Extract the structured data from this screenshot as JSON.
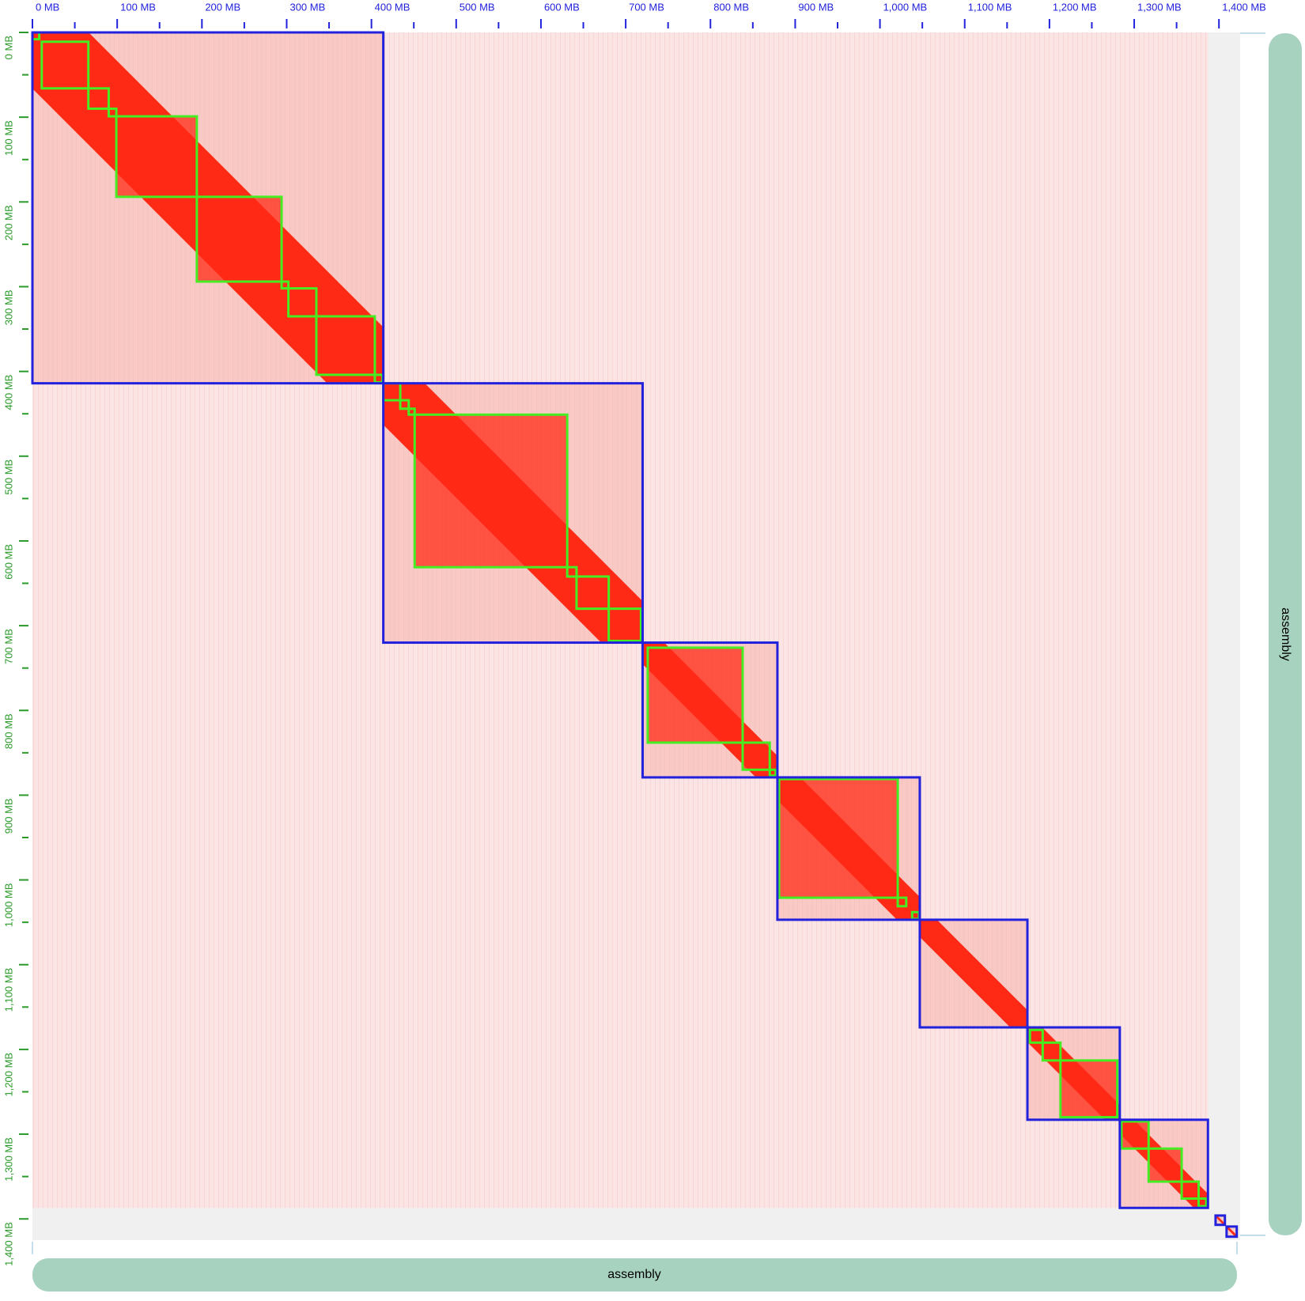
{
  "chart_data": {
    "type": "contact-map",
    "x_label": "assembly",
    "y_label": "assembly",
    "xlim": [
      0,
      1425
    ],
    "ylim": [
      0,
      1425
    ],
    "xticks": [
      {
        "value": 0,
        "label": "0 MB"
      },
      {
        "value": 100,
        "label": "100 MB"
      },
      {
        "value": 200,
        "label": "200 MB"
      },
      {
        "value": 300,
        "label": "300 MB"
      },
      {
        "value": 400,
        "label": "400 MB"
      },
      {
        "value": 500,
        "label": "500 MB"
      },
      {
        "value": 600,
        "label": "600 MB"
      },
      {
        "value": 700,
        "label": "700 MB"
      },
      {
        "value": 800,
        "label": "800 MB"
      },
      {
        "value": 900,
        "label": "900 MB"
      },
      {
        "value": 1000,
        "label": "1,000 MB"
      },
      {
        "value": 1100,
        "label": "1,100 MB"
      },
      {
        "value": 1200,
        "label": "1,200 MB"
      },
      {
        "value": 1300,
        "label": "1,300 MB"
      },
      {
        "value": 1400,
        "label": "1,400 MB"
      }
    ],
    "yticks": [
      {
        "value": 0,
        "label": "0 MB"
      },
      {
        "value": 100,
        "label": "100 MB"
      },
      {
        "value": 200,
        "label": "200 MB"
      },
      {
        "value": 300,
        "label": "300 MB"
      },
      {
        "value": 400,
        "label": "400 MB"
      },
      {
        "value": 500,
        "label": "500 MB"
      },
      {
        "value": 600,
        "label": "600 MB"
      },
      {
        "value": 700,
        "label": "700 MB"
      },
      {
        "value": 800,
        "label": "800 MB"
      },
      {
        "value": 900,
        "label": "900 MB"
      },
      {
        "value": 1000,
        "label": "1,000 MB"
      },
      {
        "value": 1100,
        "label": "1,100 MB"
      },
      {
        "value": 1200,
        "label": "1,200 MB"
      },
      {
        "value": 1300,
        "label": "1,300 MB"
      },
      {
        "value": 1400,
        "label": "1,400 MB"
      }
    ],
    "minor_ticks": [
      50,
      150,
      250,
      350,
      450,
      550,
      650,
      750,
      850,
      950,
      1050,
      1150,
      1250,
      1350
    ],
    "assembled_end": 1387,
    "scaffold_color": "#2222dd",
    "contig_color": "#44ee22",
    "scaffolds": [
      [
        0,
        414
      ],
      [
        414,
        720
      ],
      [
        720,
        879
      ],
      [
        879,
        1047
      ],
      [
        1047,
        1174
      ],
      [
        1174,
        1283
      ],
      [
        1283,
        1387
      ],
      [
        1396,
        1407
      ],
      [
        1409,
        1421
      ]
    ],
    "contigs": [
      [
        0,
        8
      ],
      [
        11,
        66
      ],
      [
        66,
        90
      ],
      [
        90,
        99
      ],
      [
        99,
        194
      ],
      [
        194,
        294
      ],
      [
        294,
        302
      ],
      [
        302,
        335
      ],
      [
        335,
        404
      ],
      [
        404,
        413
      ],
      [
        414,
        434
      ],
      [
        434,
        444
      ],
      [
        444,
        451
      ],
      [
        451,
        631
      ],
      [
        631,
        642
      ],
      [
        642,
        680
      ],
      [
        680,
        718
      ],
      [
        726,
        838
      ],
      [
        838,
        870
      ],
      [
        870,
        877
      ],
      [
        881,
        1021
      ],
      [
        1021,
        1031
      ],
      [
        1038,
        1046
      ],
      [
        1177,
        1192
      ],
      [
        1192,
        1213
      ],
      [
        1213,
        1280
      ],
      [
        1285,
        1317
      ],
      [
        1317,
        1356
      ],
      [
        1356,
        1376
      ],
      [
        1376,
        1385
      ]
    ]
  }
}
